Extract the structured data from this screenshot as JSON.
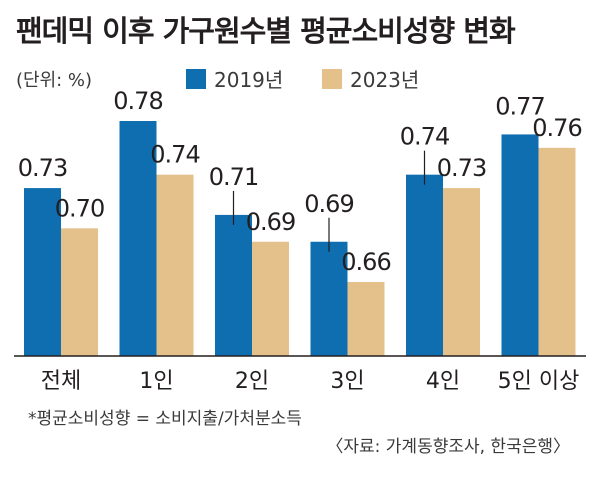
{
  "header": {
    "title": "팬데믹 이후 가구원수별 평균소비성향 변화",
    "unit": "(단위: %)"
  },
  "legend": [
    {
      "label": "2019년",
      "color": "#0e6eb0"
    },
    {
      "label": "2023년",
      "color": "#e4c08a"
    }
  ],
  "footer": {
    "note": "*평균소비성향 = 소비지출/가처분소득",
    "source": "〈자료: 가계동향조사, 한국은행〉"
  },
  "chart_data": {
    "type": "bar",
    "categories": [
      "전체",
      "1인",
      "2인",
      "3인",
      "4인",
      "5인 이상"
    ],
    "series": [
      {
        "name": "2019년",
        "values": [
          0.73,
          0.78,
          0.71,
          0.69,
          0.74,
          0.77
        ]
      },
      {
        "name": "2023년",
        "values": [
          0.7,
          0.74,
          0.69,
          0.66,
          0.73,
          0.76
        ]
      }
    ],
    "ylim": [
      0.6,
      0.8
    ],
    "grid": false
  }
}
